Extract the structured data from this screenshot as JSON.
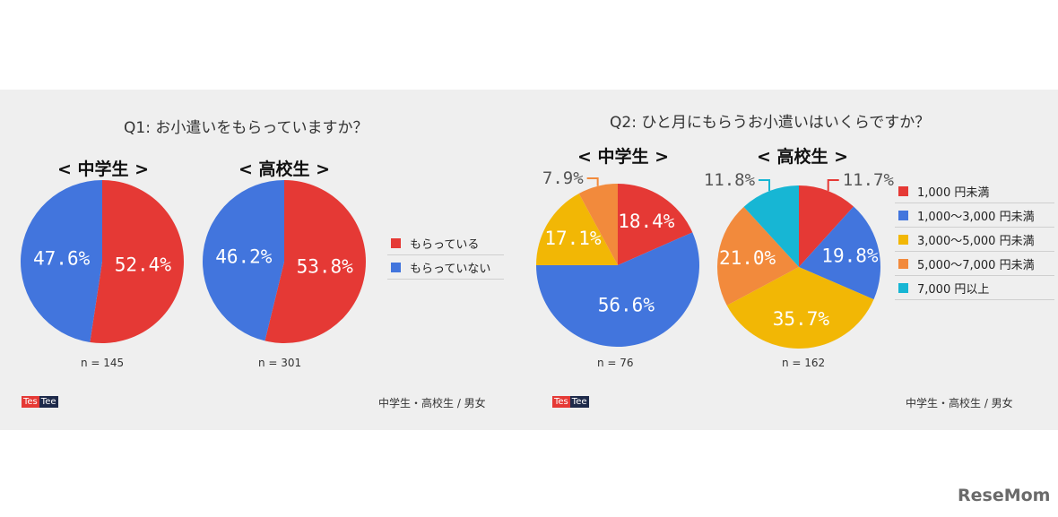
{
  "q1": {
    "title": "Q1: お小遣いをもらっていますか？",
    "source": "中学生・高校生 / 男女",
    "logo": [
      "Tes",
      "Tee"
    ],
    "legend": [
      {
        "label": "もらっている",
        "color": "#e53935"
      },
      {
        "label": "もらっていない",
        "color": "#4275dd"
      }
    ]
  },
  "q2": {
    "title": "Q2: ひと月にもらうお小遣いはいくらですか？",
    "source": "中学生・高校生 / 男女",
    "logo": [
      "Tes",
      "Tee"
    ],
    "legend": [
      {
        "label": "1,000 円未満",
        "color": "#e53935"
      },
      {
        "label": "1,000〜3,000 円未満",
        "color": "#4275dd"
      },
      {
        "label": "3,000〜5,000 円未満",
        "color": "#f2b705"
      },
      {
        "label": "5,000〜7,000 円未満",
        "color": "#f28a3c"
      },
      {
        "label": "7,000 円以上",
        "color": "#17b6d4"
      }
    ]
  },
  "chart_data": [
    {
      "type": "pie",
      "title": "Q1: お小遣いをもらっていますか？",
      "group": "< 中学生 >",
      "n_label": "n = 145",
      "slices": [
        {
          "label": "もらっている",
          "value": 52.4,
          "text": "52.4%",
          "color": "#e53935"
        },
        {
          "label": "もらっていない",
          "value": 47.6,
          "text": "47.6%",
          "color": "#4275dd"
        }
      ]
    },
    {
      "type": "pie",
      "title": "Q1: お小遣いをもらっていますか？",
      "group": "< 高校生 >",
      "n_label": "n = 301",
      "slices": [
        {
          "label": "もらっている",
          "value": 53.8,
          "text": "53.8%",
          "color": "#e53935"
        },
        {
          "label": "もらっていない",
          "value": 46.2,
          "text": "46.2%",
          "color": "#4275dd"
        }
      ]
    },
    {
      "type": "pie",
      "title": "Q2: ひと月にもらうお小遣いはいくらですか？",
      "group": "< 中学生 >",
      "n_label": "n = 76",
      "slices": [
        {
          "label": "1,000 円未満",
          "value": 18.4,
          "text": "18.4%",
          "color": "#e53935"
        },
        {
          "label": "1,000〜3,000 円未満",
          "value": 56.6,
          "text": "56.6%",
          "color": "#4275dd"
        },
        {
          "label": "3,000〜5,000 円未満",
          "value": 17.1,
          "text": "17.1%",
          "color": "#f2b705"
        },
        {
          "label": "5,000〜7,000 円未満",
          "value": 7.9,
          "text": "7.9%",
          "color": "#f28a3c"
        }
      ]
    },
    {
      "type": "pie",
      "title": "Q2: ひと月にもらうお小遣いはいくらですか？",
      "group": "< 高校生 >",
      "n_label": "n = 162",
      "slices": [
        {
          "label": "1,000 円未満",
          "value": 11.7,
          "text": "11.7%",
          "color": "#e53935"
        },
        {
          "label": "1,000〜3,000 円未満",
          "value": 19.8,
          "text": "19.8%",
          "color": "#4275dd"
        },
        {
          "label": "3,000〜5,000 円未満",
          "value": 35.7,
          "text": "35.7%",
          "color": "#f2b705"
        },
        {
          "label": "5,000〜7,000 円未満",
          "value": 21.0,
          "text": "21.0%",
          "color": "#f28a3c"
        },
        {
          "label": "7,000 円以上",
          "value": 11.8,
          "text": "11.8%",
          "color": "#17b6d4"
        }
      ]
    }
  ],
  "brand": "ReseMom"
}
